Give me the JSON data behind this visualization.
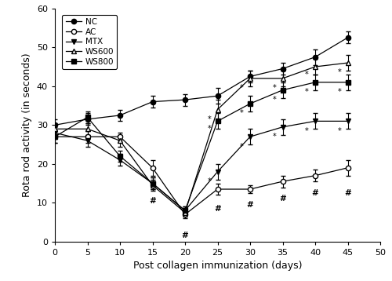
{
  "x": [
    0,
    5,
    10,
    15,
    20,
    25,
    30,
    35,
    40,
    45
  ],
  "NC": [
    30,
    31.5,
    32.5,
    36,
    36.5,
    37.5,
    42.5,
    44.5,
    47.5,
    52.5
  ],
  "AC": [
    27,
    27,
    27,
    19,
    7,
    13.5,
    13.5,
    15.5,
    17,
    19
  ],
  "MTX": [
    28,
    26,
    21,
    15,
    8,
    18,
    27,
    29.5,
    31,
    31
  ],
  "WS600": [
    29,
    29,
    26,
    14.5,
    7.5,
    34,
    42,
    42,
    45,
    46
  ],
  "WS800": [
    27,
    32,
    22,
    15,
    8,
    31,
    35.5,
    39,
    41,
    41
  ],
  "NC_err": [
    1.5,
    1.5,
    1.5,
    1.5,
    1.5,
    2.0,
    1.5,
    1.5,
    2.0,
    1.5
  ],
  "AC_err": [
    1.5,
    1.5,
    1.0,
    2.0,
    1.0,
    1.5,
    1.0,
    1.5,
    1.5,
    2.0
  ],
  "MTX_err": [
    1.5,
    1.5,
    1.5,
    1.5,
    1.0,
    2.0,
    2.0,
    2.0,
    2.0,
    2.0
  ],
  "WS600_err": [
    1.5,
    1.5,
    1.5,
    1.5,
    1.0,
    2.5,
    2.0,
    2.0,
    2.0,
    2.0
  ],
  "WS800_err": [
    1.5,
    1.5,
    1.5,
    1.5,
    1.0,
    2.0,
    2.0,
    2.0,
    2.0,
    2.0
  ],
  "xlim": [
    0,
    50
  ],
  "ylim": [
    0,
    60
  ],
  "xlabel": "Post collagen immunization (days)",
  "ylabel": "Rota rod activity (in seconds)",
  "xticks": [
    0,
    5,
    10,
    15,
    20,
    25,
    30,
    35,
    40,
    45,
    50
  ],
  "yticks": [
    0,
    10,
    20,
    30,
    40,
    50,
    60
  ],
  "star_data": {
    "MTX": [
      [
        25,
        15.5
      ],
      [
        30,
        24.5
      ],
      [
        35,
        27
      ],
      [
        40,
        28.5
      ],
      [
        45,
        28.5
      ]
    ],
    "WS600": [
      [
        25,
        31.5
      ],
      [
        30,
        39.5
      ],
      [
        35,
        39.5
      ],
      [
        40,
        43
      ],
      [
        45,
        43.5
      ]
    ],
    "WS800": [
      [
        25,
        29
      ],
      [
        30,
        33
      ],
      [
        35,
        36.5
      ],
      [
        40,
        38.5
      ],
      [
        45,
        38.5
      ]
    ]
  },
  "hash_positions": [
    [
      15,
      11.5
    ],
    [
      20,
      2.5
    ],
    [
      25,
      9.5
    ],
    [
      30,
      10.5
    ],
    [
      35,
      12.0
    ],
    [
      40,
      13.5
    ],
    [
      45,
      13.5
    ]
  ],
  "line_color": "#000000",
  "bg_color": "#ffffff",
  "fontsize": 9
}
